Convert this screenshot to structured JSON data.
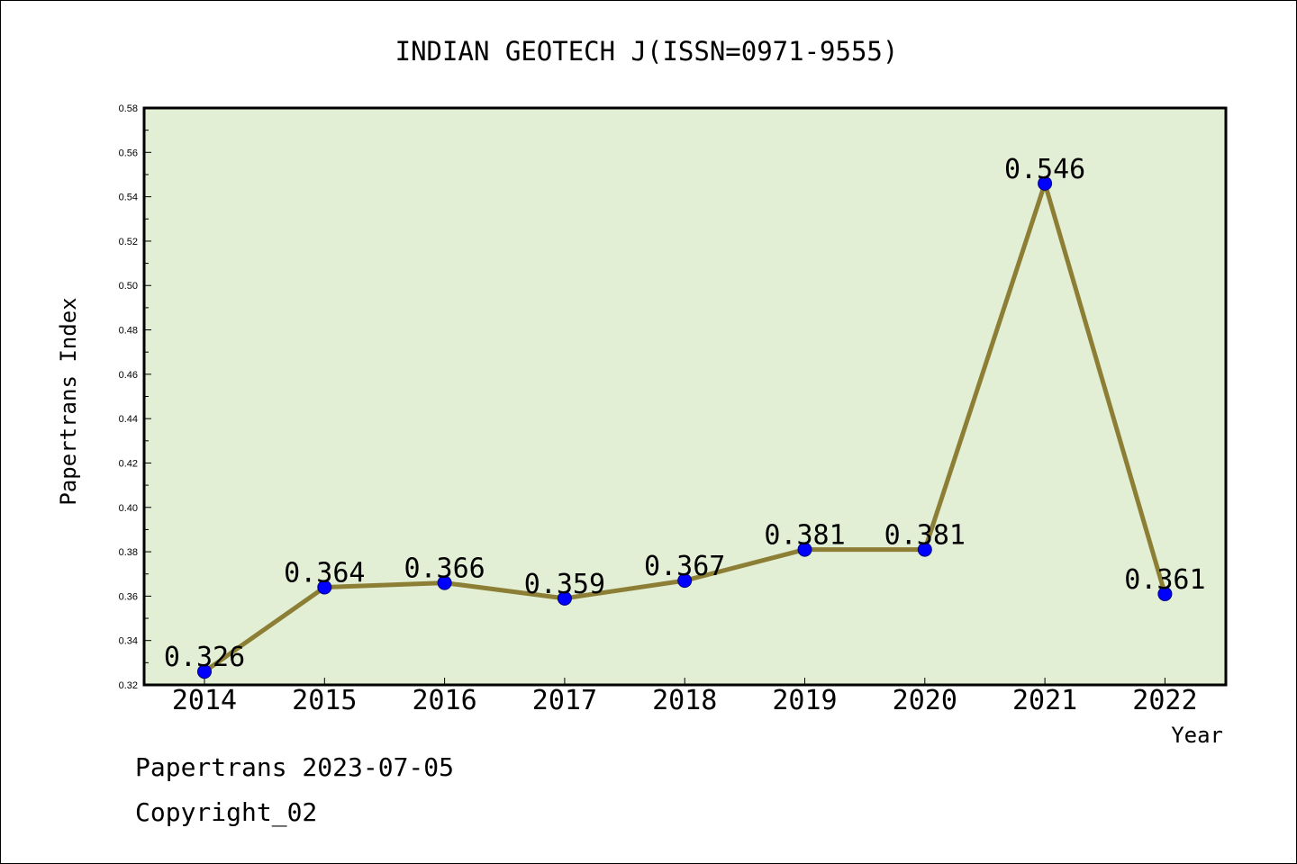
{
  "chart_data": {
    "type": "line",
    "title": "INDIAN GEOTECH J(ISSN=0971-9555)",
    "xlabel": "Year",
    "ylabel": "Papertrans Index",
    "categories": [
      "2014",
      "2015",
      "2016",
      "2017",
      "2018",
      "2019",
      "2020",
      "2021",
      "2022"
    ],
    "values": [
      0.326,
      0.364,
      0.366,
      0.359,
      0.367,
      0.381,
      0.381,
      0.546,
      0.361
    ],
    "data_labels": [
      "0.326",
      "0.364",
      "0.366",
      "0.359",
      "0.367",
      "0.381",
      "0.381",
      "0.546",
      "0.361"
    ],
    "ylim": [
      0.32,
      0.58
    ],
    "yticks": [
      "0.32",
      "0.34",
      "0.36",
      "0.38",
      "0.40",
      "0.42",
      "0.44",
      "0.46",
      "0.48",
      "0.50",
      "0.52",
      "0.54",
      "0.56",
      "0.58"
    ],
    "grid": false,
    "legend": "none",
    "colors": {
      "plot_background": "#e2efd4",
      "line": "#8c7f35",
      "marker": "#0000ff"
    }
  },
  "footer": {
    "source": "Papertrans 2023-07-05",
    "copyright": "Copyright_02"
  }
}
